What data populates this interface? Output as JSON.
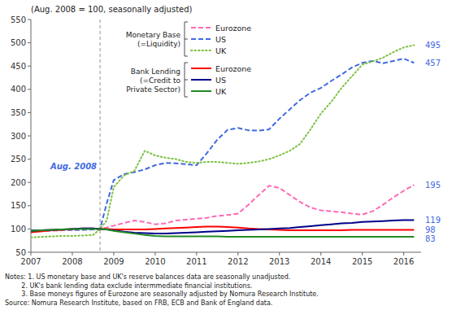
{
  "chart_data": {
    "type": "line",
    "title": "(Aug. 2008 = 100, seasonally adjusted)",
    "x": [
      2007.0,
      2007.25,
      2007.5,
      2007.75,
      2008.0,
      2008.25,
      2008.5,
      2008.67,
      2008.83,
      2009.0,
      2009.25,
      2009.5,
      2009.75,
      2010.0,
      2010.25,
      2010.5,
      2010.75,
      2011.0,
      2011.25,
      2011.5,
      2011.75,
      2012.0,
      2012.25,
      2012.5,
      2012.75,
      2013.0,
      2013.25,
      2013.5,
      2013.75,
      2014.0,
      2014.25,
      2014.5,
      2014.75,
      2015.0,
      2015.25,
      2015.5,
      2015.75,
      2016.0,
      2016.25
    ],
    "xlim": [
      2007.0,
      2016.42
    ],
    "xticks": [
      2007,
      2008,
      2009,
      2010,
      2011,
      2012,
      2013,
      2014,
      2015,
      2016
    ],
    "ylim": [
      50,
      550
    ],
    "yticks": [
      50,
      100,
      150,
      200,
      250,
      300,
      350,
      400,
      450,
      500,
      550
    ],
    "grid": false,
    "series": [
      {
        "name": "Eurozone",
        "color": "#FF69B4",
        "line_style": "dashed",
        "values": [
          95,
          95,
          96,
          97,
          98,
          99,
          99,
          100,
          103,
          107,
          113,
          118,
          115,
          110,
          112,
          118,
          120,
          122,
          124,
          128,
          130,
          133,
          152,
          173,
          193,
          188,
          173,
          158,
          146,
          140,
          138,
          136,
          133,
          131,
          138,
          152,
          168,
          182,
          195
        ]
      },
      {
        "name": "US",
        "color": "#4169E1",
        "line_style": "dashed",
        "values": [
          97,
          97,
          97,
          98,
          98,
          98,
          99,
          100,
          155,
          205,
          218,
          222,
          228,
          237,
          242,
          241,
          239,
          237,
          263,
          292,
          313,
          317,
          312,
          311,
          314,
          337,
          357,
          377,
          393,
          403,
          418,
          432,
          447,
          457,
          461,
          456,
          461,
          466,
          457
        ]
      },
      {
        "name": "UK",
        "color": "#7DC142",
        "line_style": "dotted",
        "values": [
          82,
          83,
          84,
          85,
          85,
          86,
          87,
          100,
          118,
          190,
          215,
          225,
          268,
          258,
          253,
          250,
          244,
          242,
          244,
          244,
          242,
          240,
          242,
          245,
          250,
          258,
          268,
          283,
          314,
          348,
          373,
          403,
          428,
          453,
          460,
          468,
          480,
          490,
          495
        ]
      },
      {
        "name": "Eurozone",
        "color": "#FF0000",
        "line_style": "solid",
        "values": [
          93,
          95,
          97,
          98,
          100,
          101,
          101,
          100,
          100,
          99,
          99,
          99,
          99,
          100,
          101,
          102,
          103,
          104,
          105,
          105,
          104,
          103,
          101,
          100,
          99,
          98,
          97,
          97,
          97,
          97,
          97,
          97,
          98,
          98,
          98,
          98,
          98,
          98,
          98
        ]
      },
      {
        "name": "US",
        "color": "#00008B",
        "line_style": "solid",
        "values": [
          96,
          97,
          98,
          99,
          100,
          101,
          101,
          100,
          99,
          97,
          94,
          92,
          91,
          90,
          90,
          91,
          92,
          93,
          94,
          95,
          96,
          97,
          98,
          99,
          100,
          101,
          102,
          104,
          106,
          108,
          110,
          112,
          113,
          115,
          116,
          117,
          118,
          119,
          119
        ]
      },
      {
        "name": "UK",
        "color": "#228B22",
        "line_style": "solid",
        "values": [
          96,
          97,
          98,
          99,
          100,
          100,
          100,
          100,
          99,
          96,
          93,
          90,
          87,
          85,
          84,
          84,
          84,
          84,
          84,
          84,
          83,
          83,
          83,
          83,
          83,
          83,
          83,
          83,
          83,
          83,
          83,
          83,
          83,
          83,
          83,
          83,
          83,
          83,
          83
        ]
      }
    ],
    "legend_groups": [
      {
        "label": "Monetary Base\n(=Liquidity)",
        "series": [
          0,
          1,
          2
        ]
      },
      {
        "label": "Bank Lending\n(=Credit to\nPrivate Sector)",
        "series": [
          3,
          4,
          5
        ]
      }
    ],
    "reference_lines": [
      {
        "x": 2008.67,
        "label": "Aug. 2008",
        "label_y": 228
      }
    ],
    "end_labels": [
      {
        "y": 495,
        "text": "495"
      },
      {
        "y": 457,
        "text": "457"
      },
      {
        "y": 195,
        "text": "195"
      },
      {
        "y": 119,
        "text": "119"
      },
      {
        "y": 98,
        "text": "98"
      },
      {
        "y": 83,
        "text": "83"
      }
    ],
    "notes": "Notes: 1. US monetary base and UK's reserve balances data are seasonally unadjusted.\n        2. UK's bank lending data exclude intermmediate financial institutions.\n        3. Base moneys figures of Eurozone are seasonally adjusted by Nomura Research Institute.\nSource: Nomura Research Institute, based on FRB, ECB and Bank of England data."
  }
}
